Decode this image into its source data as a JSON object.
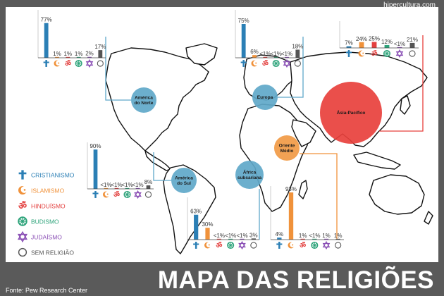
{
  "site": "hipercultura.com",
  "title": "MAPA DAS RELIGIÕES",
  "source": "Fonte: Pew Research Center",
  "legend": [
    {
      "label": "CRISTIANISMO",
      "icon": "cross-icon",
      "color": "#2b7fb5"
    },
    {
      "label": "ISLAMISMO",
      "icon": "crescent-icon",
      "color": "#f0923b"
    },
    {
      "label": "HINDUÍSMO",
      "icon": "om-icon",
      "color": "#e3403f"
    },
    {
      "label": "BUDISMO",
      "icon": "dharma-wheel-icon",
      "color": "#2da37a"
    },
    {
      "label": "JUDAÍSMO",
      "icon": "star-of-david-icon",
      "color": "#8a4fb5"
    },
    {
      "label": "SEM RELIGIÃO",
      "icon": "circle-icon",
      "color": "#555555"
    }
  ],
  "regions": [
    {
      "name": "América do Norte",
      "color": "#5fa8c9"
    },
    {
      "name": "Europa",
      "color": "#5fa8c9"
    },
    {
      "name": "Ásia-Pacífico",
      "color": "#e8403c"
    },
    {
      "name": "Oriente Médio",
      "color": "#f19a45"
    },
    {
      "name": "América do Sul",
      "color": "#5fa8c9"
    },
    {
      "name": "África subsariana",
      "color": "#5fa8c9"
    }
  ],
  "chart_data": [
    {
      "type": "bar",
      "region": "América do Norte",
      "categories": [
        "Cristianismo",
        "Islamismo",
        "Hinduísmo",
        "Budismo",
        "Judaísmo",
        "Sem religião"
      ],
      "values": [
        77,
        1,
        1,
        1,
        2,
        17
      ],
      "labels": [
        "77%",
        "1%",
        "1%",
        "1%",
        "2%",
        "17%"
      ]
    },
    {
      "type": "bar",
      "region": "Europa",
      "categories": [
        "Cristianismo",
        "Islamismo",
        "Hinduísmo",
        "Budismo",
        "Judaísmo",
        "Sem religião"
      ],
      "values": [
        75,
        6,
        0.5,
        0.5,
        0.5,
        18
      ],
      "labels": [
        "75%",
        "6%",
        "<1%",
        "<1%",
        "<1%",
        "18%"
      ]
    },
    {
      "type": "bar",
      "region": "Ásia-Pacífico",
      "categories": [
        "Cristianismo",
        "Islamismo",
        "Hinduísmo",
        "Budismo",
        "Judaísmo",
        "Sem religião"
      ],
      "values": [
        7,
        24,
        25,
        12,
        0.5,
        21
      ],
      "labels": [
        "7%",
        "24%",
        "25%",
        "12%",
        "<1%",
        "21%"
      ]
    },
    {
      "type": "bar",
      "region": "América do Sul",
      "categories": [
        "Cristianismo",
        "Islamismo",
        "Hinduísmo",
        "Budismo",
        "Judaísmo",
        "Sem religião"
      ],
      "values": [
        90,
        0.5,
        0.5,
        0.5,
        0.5,
        8
      ],
      "labels": [
        "90%",
        "<1%",
        "<1%",
        "<1%",
        "<1%",
        "8%"
      ]
    },
    {
      "type": "bar",
      "region": "África subsariana",
      "categories": [
        "Cristianismo",
        "Islamismo",
        "Hinduísmo",
        "Budismo",
        "Judaísmo",
        "Sem religião"
      ],
      "values": [
        63,
        30,
        0.5,
        0.5,
        0.5,
        3
      ],
      "labels": [
        "63%",
        "30%",
        "<1%",
        "<1%",
        "<1%",
        "3%"
      ]
    },
    {
      "type": "bar",
      "region": "Oriente Médio",
      "categories": [
        "Cristianismo",
        "Islamismo",
        "Hinduísmo",
        "Budismo",
        "Judaísmo",
        "Sem religião"
      ],
      "values": [
        4,
        93,
        1,
        0.5,
        1,
        1
      ],
      "labels": [
        "4%",
        "93%",
        "1%",
        "<1%",
        "1%",
        "1%"
      ]
    }
  ]
}
